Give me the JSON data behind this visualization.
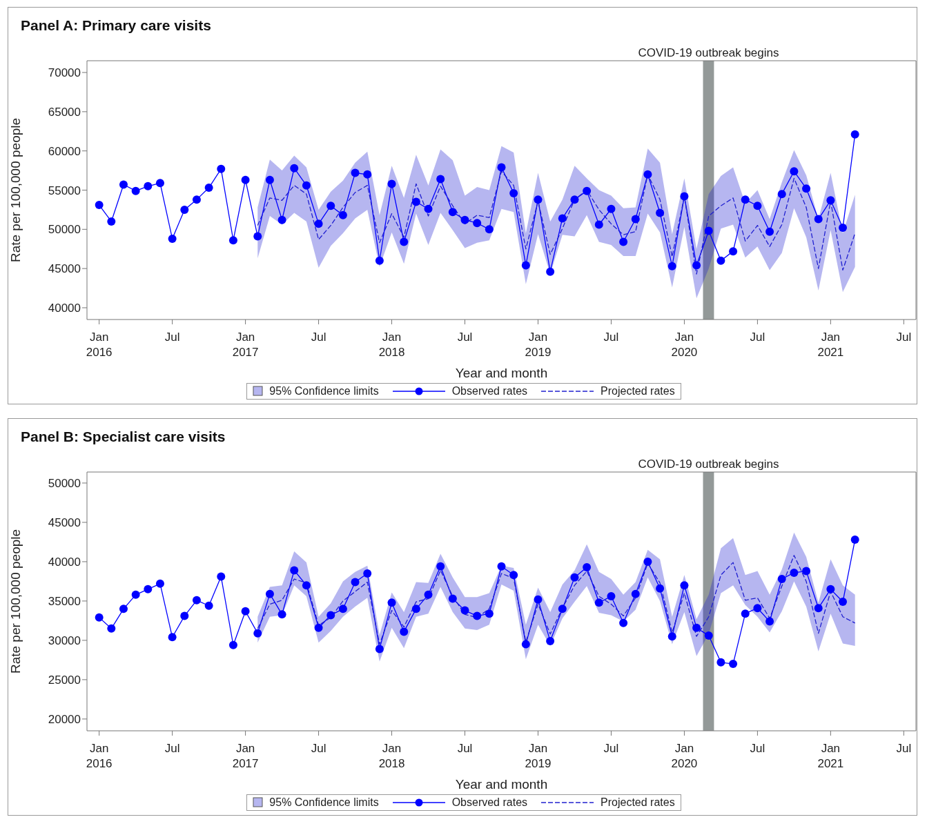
{
  "chart_data": [
    {
      "type": "line",
      "title": "Panel A: Primary care visits",
      "xlabel": "Year and month",
      "ylabel": "Rate per 100,000 people",
      "legend": "bottom",
      "annotations": [
        "95% Confidence limits"
      ],
      "x": [
        "2016-01",
        "2016-02",
        "2016-03",
        "2016-04",
        "2016-05",
        "2016-06",
        "2016-07",
        "2016-08",
        "2016-09",
        "2016-10",
        "2016-11",
        "2016-12",
        "2017-01",
        "2017-02",
        "2017-03",
        "2017-04",
        "2017-05",
        "2017-06",
        "2017-07",
        "2017-08",
        "2017-09",
        "2017-10",
        "2017-11",
        "2017-12",
        "2018-01",
        "2018-02",
        "2018-03",
        "2018-04",
        "2018-05",
        "2018-06",
        "2018-07",
        "2018-08",
        "2018-09",
        "2018-10",
        "2018-11",
        "2018-12",
        "2019-01",
        "2019-02",
        "2019-03",
        "2019-04",
        "2019-05",
        "2019-06",
        "2019-07",
        "2019-08",
        "2019-09",
        "2019-10",
        "2019-11",
        "2019-12",
        "2020-01",
        "2020-02",
        "2020-03",
        "2020-04",
        "2020-05",
        "2020-06",
        "2020-07",
        "2020-08",
        "2020-09",
        "2020-10",
        "2020-11",
        "2020-12",
        "2021-01",
        "2021-02",
        "2021-03"
      ],
      "xlim": [
        "2015-12",
        "2021-08"
      ],
      "xticks": [
        {
          "value": "2016-01",
          "label": "Jan 2016"
        },
        {
          "value": "2016-07",
          "label": "Jul"
        },
        {
          "value": "2017-01",
          "label": "Jan 2017"
        },
        {
          "value": "2017-07",
          "label": "Jul"
        },
        {
          "value": "2018-01",
          "label": "Jan 2018"
        },
        {
          "value": "2018-07",
          "label": "Jul"
        },
        {
          "value": "2019-01",
          "label": "Jan 2019"
        },
        {
          "value": "2019-07",
          "label": "Jul"
        },
        {
          "value": "2020-01",
          "label": "Jan 2020"
        },
        {
          "value": "2020-07",
          "label": "Jul"
        },
        {
          "value": "2021-01",
          "label": "Jan 2021"
        },
        {
          "value": "2021-07",
          "label": "Jul"
        }
      ],
      "ylim": [
        38500,
        71500
      ],
      "yticks": [
        40000,
        45000,
        50000,
        55000,
        60000,
        65000,
        70000
      ],
      "bands": [
        {
          "axis": "x",
          "from": "2020-02-17",
          "to": "2020-03-14",
          "label": "COVID-19 outbreak begins",
          "color": "#939998"
        }
      ],
      "series": [
        {
          "name": "Observed rates",
          "color": "#0000ff",
          "marker": "circle",
          "line_style": "solid",
          "values": [
            53100,
            51000,
            55700,
            54900,
            55500,
            55900,
            48800,
            52500,
            53800,
            55300,
            57700,
            48600,
            56300,
            49100,
            56300,
            51200,
            57800,
            55600,
            50700,
            53000,
            51800,
            57200,
            57000,
            46000,
            55800,
            48400,
            53500,
            52600,
            56400,
            52200,
            51200,
            50800,
            50000,
            57900,
            54600,
            45400,
            53800,
            44600,
            51400,
            53800,
            54900,
            50600,
            52600,
            48400,
            51300,
            57000,
            52100,
            45300,
            54200,
            45400,
            49800,
            46000,
            47200,
            53800,
            53000,
            49700,
            54500,
            57400,
            55200,
            51300,
            53700,
            50200,
            62100
          ]
        },
        {
          "name": "Projected rates",
          "color": "#2020d0",
          "marker": "none",
          "line_style": "dashed",
          "values": [
            null,
            null,
            null,
            null,
            null,
            null,
            null,
            null,
            null,
            null,
            null,
            null,
            null,
            50500,
            54000,
            53700,
            55600,
            54500,
            48700,
            50500,
            52800,
            54700,
            55600,
            48300,
            52000,
            49000,
            55800,
            51700,
            55500,
            53000,
            50700,
            51800,
            51500,
            57400,
            55600,
            47500,
            53600,
            46800,
            50100,
            53800,
            55000,
            52500,
            50700,
            49300,
            49700,
            57000,
            53800,
            46500,
            54200,
            44300,
            51700,
            53000,
            54000,
            48500,
            50500,
            47800,
            50600,
            56500,
            52800,
            45000,
            53600,
            44800,
            49500
          ],
          "lower": [
            null,
            null,
            null,
            null,
            null,
            null,
            null,
            null,
            null,
            null,
            null,
            null,
            null,
            46300,
            51700,
            50600,
            52100,
            51000,
            45100,
            47900,
            49500,
            51400,
            52500,
            45200,
            49600,
            45600,
            52000,
            48000,
            52100,
            49900,
            47600,
            48300,
            48600,
            52600,
            52200,
            43000,
            49400,
            44300,
            49300,
            49100,
            51800,
            48400,
            48000,
            46600,
            46600,
            52000,
            49600,
            42600,
            50300,
            41200,
            45000,
            50100,
            50600,
            46400,
            47800,
            44800,
            47000,
            52700,
            49000,
            42200,
            49900,
            42000,
            45200
          ],
          "upper": [
            null,
            null,
            null,
            null,
            null,
            null,
            null,
            null,
            null,
            null,
            null,
            null,
            null,
            52800,
            58900,
            57500,
            59400,
            57900,
            52500,
            54800,
            56200,
            58500,
            59900,
            51800,
            58100,
            54000,
            59500,
            55600,
            60200,
            58800,
            54300,
            55400,
            55000,
            60600,
            59800,
            49500,
            57200,
            51000,
            53800,
            58100,
            56500,
            55000,
            54300,
            52700,
            52800,
            60300,
            58500,
            49400,
            56500,
            47500,
            54500,
            56800,
            57900,
            53300,
            55000,
            51300,
            56000,
            60100,
            56900,
            51300,
            57200,
            49500,
            54400
          ]
        }
      ]
    },
    {
      "type": "line",
      "title": "Panel B: Specialist care visits",
      "xlabel": "Year and month",
      "ylabel": "Rate per 100,000 people",
      "legend": "bottom",
      "annotations": [
        "95% Confidence limits"
      ],
      "x": [
        "2016-01",
        "2016-02",
        "2016-03",
        "2016-04",
        "2016-05",
        "2016-06",
        "2016-07",
        "2016-08",
        "2016-09",
        "2016-10",
        "2016-11",
        "2016-12",
        "2017-01",
        "2017-02",
        "2017-03",
        "2017-04",
        "2017-05",
        "2017-06",
        "2017-07",
        "2017-08",
        "2017-09",
        "2017-10",
        "2017-11",
        "2017-12",
        "2018-01",
        "2018-02",
        "2018-03",
        "2018-04",
        "2018-05",
        "2018-06",
        "2018-07",
        "2018-08",
        "2018-09",
        "2018-10",
        "2018-11",
        "2018-12",
        "2019-01",
        "2019-02",
        "2019-03",
        "2019-04",
        "2019-05",
        "2019-06",
        "2019-07",
        "2019-08",
        "2019-09",
        "2019-10",
        "2019-11",
        "2019-12",
        "2020-01",
        "2020-02",
        "2020-03",
        "2020-04",
        "2020-05",
        "2020-06",
        "2020-07",
        "2020-08",
        "2020-09",
        "2020-10",
        "2020-11",
        "2020-12",
        "2021-01",
        "2021-02",
        "2021-03"
      ],
      "xlim": [
        "2015-12",
        "2021-08"
      ],
      "xticks": [
        {
          "value": "2016-01",
          "label": "Jan 2016"
        },
        {
          "value": "2016-07",
          "label": "Jul"
        },
        {
          "value": "2017-01",
          "label": "Jan 2017"
        },
        {
          "value": "2017-07",
          "label": "Jul"
        },
        {
          "value": "2018-01",
          "label": "Jan 2018"
        },
        {
          "value": "2018-07",
          "label": "Jul"
        },
        {
          "value": "2019-01",
          "label": "Jan 2019"
        },
        {
          "value": "2019-07",
          "label": "Jul"
        },
        {
          "value": "2020-01",
          "label": "Jan 2020"
        },
        {
          "value": "2020-07",
          "label": "Jul"
        },
        {
          "value": "2021-01",
          "label": "Jan 2021"
        },
        {
          "value": "2021-07",
          "label": "Jul"
        }
      ],
      "ylim": [
        18500,
        51400
      ],
      "yticks": [
        20000,
        25000,
        30000,
        35000,
        40000,
        45000,
        50000
      ],
      "bands": [
        {
          "axis": "x",
          "from": "2020-02-17",
          "to": "2020-03-14",
          "label": "COVID-19 outbreak begins",
          "color": "#939998"
        }
      ],
      "series": [
        {
          "name": "Observed rates",
          "color": "#0000ff",
          "marker": "circle",
          "line_style": "solid",
          "values": [
            32900,
            31500,
            34000,
            35800,
            36500,
            37200,
            30400,
            33100,
            35100,
            34400,
            38100,
            29400,
            33700,
            30900,
            35900,
            33300,
            38900,
            37000,
            31600,
            33200,
            34000,
            37400,
            38500,
            28900,
            34800,
            31100,
            34000,
            35800,
            39400,
            35300,
            33800,
            33100,
            33400,
            39400,
            38300,
            29500,
            35200,
            29900,
            34000,
            38000,
            39300,
            34800,
            35600,
            32200,
            35900,
            40000,
            36600,
            30500,
            37000,
            31600,
            30600,
            27200,
            27000,
            33400,
            34100,
            32400,
            37800,
            38600,
            38800,
            34100,
            36500,
            34900,
            42800
          ]
        },
        {
          "name": "Projected rates",
          "color": "#2020d0",
          "marker": "none",
          "line_style": "dashed",
          "values": [
            null,
            null,
            null,
            null,
            null,
            null,
            null,
            null,
            null,
            null,
            null,
            null,
            null,
            31500,
            34600,
            35100,
            37800,
            37300,
            31900,
            32900,
            35000,
            36200,
            37400,
            29500,
            33800,
            31700,
            34900,
            35300,
            38900,
            35600,
            33300,
            32900,
            34000,
            38500,
            37900,
            29800,
            34600,
            30800,
            34100,
            37000,
            38800,
            35600,
            34600,
            33100,
            35400,
            39800,
            37300,
            31000,
            36000,
            30500,
            33000,
            38300,
            39900,
            35100,
            35400,
            32800,
            36900,
            40800,
            37500,
            30900,
            36200,
            33000,
            32200
          ],
          "lower": [
            null,
            null,
            null,
            null,
            null,
            null,
            null,
            null,
            null,
            null,
            null,
            null,
            null,
            29700,
            33000,
            33200,
            37000,
            35600,
            29700,
            31200,
            33000,
            34300,
            35400,
            27300,
            31600,
            29000,
            33000,
            33400,
            36800,
            33600,
            31500,
            31300,
            32000,
            37100,
            36300,
            27600,
            32000,
            29300,
            32800,
            34900,
            36900,
            33500,
            33200,
            32400,
            33900,
            38000,
            35000,
            29500,
            33600,
            28000,
            30800,
            36000,
            37000,
            34500,
            33000,
            31000,
            33700,
            37500,
            34300,
            28600,
            33400,
            29600,
            29300
          ],
          "upper": [
            null,
            null,
            null,
            null,
            null,
            null,
            null,
            null,
            null,
            null,
            null,
            null,
            null,
            33000,
            36800,
            37000,
            41300,
            39900,
            33000,
            34700,
            37500,
            38700,
            39500,
            30700,
            36100,
            33600,
            37400,
            37300,
            41000,
            38000,
            35500,
            35500,
            36000,
            39500,
            39200,
            32000,
            36700,
            33600,
            37100,
            38900,
            42200,
            38700,
            37800,
            35800,
            37400,
            41500,
            40300,
            33000,
            38300,
            32700,
            35800,
            41700,
            43000,
            38300,
            38800,
            35800,
            39000,
            43700,
            40600,
            34800,
            40300,
            37000,
            35800
          ]
        }
      ]
    }
  ]
}
